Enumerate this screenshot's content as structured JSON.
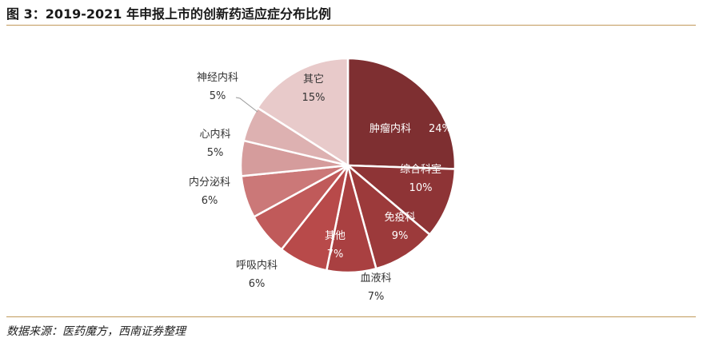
{
  "title": "图 3：2019-2021 年申报上市的创新药适应症分布比例",
  "source": "数据来源：医药魔方，西南证券整理",
  "colors": {
    "rule": "#c19a5b"
  },
  "chart_data": {
    "type": "pie",
    "title": "图 3：2019-2021 年申报上市的创新药适应症分布比例",
    "slices": [
      {
        "name": "肿瘤内科",
        "value": 24,
        "label": "24%",
        "color": "#7e2f31"
      },
      {
        "name": "综合科室",
        "value": 10,
        "label": "10%",
        "color": "#8e3436"
      },
      {
        "name": "免疫科",
        "value": 9,
        "label": "9%",
        "color": "#9c3a3b"
      },
      {
        "name": "血液科",
        "value": 7,
        "label": "7%",
        "color": "#a94041"
      },
      {
        "name": "其他",
        "value": 7,
        "label": "7%",
        "color": "#b84a4a"
      },
      {
        "name": "呼吸内科",
        "value": 6,
        "label": "6%",
        "color": "#c05a5a"
      },
      {
        "name": "内分泌科",
        "value": 6,
        "label": "6%",
        "color": "#cb7878"
      },
      {
        "name": "心内科",
        "value": 5,
        "label": "5%",
        "color": "#d59c9c"
      },
      {
        "name": "神经内科",
        "value": 5,
        "label": "5%",
        "color": "#ddb1b1"
      },
      {
        "name": "其它",
        "value": 15,
        "label": "15%",
        "color": "#e8caca"
      }
    ]
  }
}
